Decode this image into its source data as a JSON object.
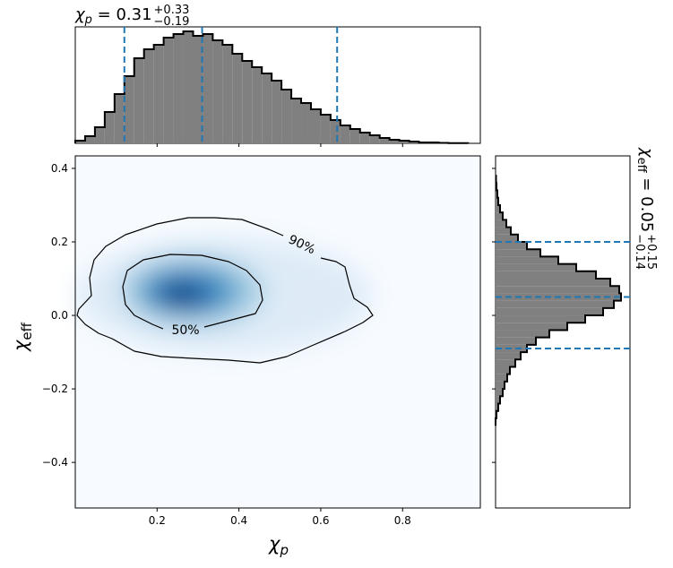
{
  "chart_data": [
    {
      "type": "histogram",
      "orientation": "vertical",
      "title": {
        "symbol": "χ",
        "sub": "p",
        "eq": " = 0.31",
        "plus": "+0.33",
        "minus": "−0.19"
      },
      "bins": [
        0,
        0.024,
        0.048,
        0.072,
        0.096,
        0.12,
        0.144,
        0.168,
        0.192,
        0.216,
        0.24,
        0.264,
        0.288,
        0.312,
        0.336,
        0.36,
        0.384,
        0.408,
        0.432,
        0.456,
        0.48,
        0.504,
        0.528,
        0.552,
        0.576,
        0.6,
        0.624,
        0.648,
        0.672,
        0.696,
        0.72,
        0.744,
        0.768,
        0.792,
        0.816,
        0.84,
        0.864,
        0.888,
        0.912,
        0.936,
        0.96
      ],
      "values": [
        3,
        8,
        18,
        35,
        55,
        75,
        95,
        105,
        110,
        118,
        122,
        125,
        120,
        122,
        115,
        110,
        100,
        92,
        85,
        78,
        70,
        60,
        50,
        45,
        38,
        32,
        26,
        20,
        16,
        12,
        9,
        6,
        4,
        3,
        2,
        1,
        1,
        0.5,
        0.3,
        0.2
      ],
      "color": "#808080",
      "xlim": [
        0,
        0.99
      ],
      "ylim": [
        0,
        130
      ],
      "lines": [
        0.12,
        0.31,
        0.64
      ],
      "line_color": "#1f77b4"
    },
    {
      "type": "density",
      "xlim": [
        0,
        0.99
      ],
      "ylim": [
        -0.524,
        0.434
      ],
      "xticks": [
        0.2,
        0.4,
        0.6,
        0.8
      ],
      "yticks": [
        {
          "value": -0.4,
          "label": "−0.4"
        },
        {
          "value": -0.2,
          "label": "−0.2"
        },
        {
          "value": 0,
          "label": "0.0"
        },
        0.2,
        0.4
      ],
      "x_label": {
        "symbol": "χ",
        "sub": "p"
      },
      "y_label": {
        "symbol": "χ",
        "sub": "eff"
      },
      "contour_labels": [
        "90%",
        "50%"
      ]
    },
    {
      "type": "histogram",
      "orientation": "horizontal",
      "title": {
        "symbol": "χ",
        "sub": "eff",
        "eq": " = 0.05",
        "plus": "+0.15",
        "minus": "−0.14"
      },
      "bins": [
        -0.3,
        -0.28,
        -0.26,
        -0.24,
        -0.22,
        -0.2,
        -0.18,
        -0.16,
        -0.14,
        -0.12,
        -0.1,
        -0.08,
        -0.06,
        -0.04,
        -0.02,
        0,
        0.02,
        0.04,
        0.06,
        0.08,
        0.1,
        0.12,
        0.14,
        0.16,
        0.18,
        0.2,
        0.22,
        0.24,
        0.26,
        0.28,
        0.3,
        0.32,
        0.34,
        0.36,
        0.38
      ],
      "values": [
        0,
        1,
        3,
        5,
        8,
        10,
        13,
        16,
        22,
        28,
        35,
        45,
        60,
        80,
        100,
        120,
        132,
        140,
        138,
        128,
        112,
        90,
        70,
        50,
        35,
        25,
        17,
        12,
        8,
        5,
        3,
        2,
        1,
        0.5
      ],
      "color": "#808080",
      "xlim": [
        0,
        150
      ],
      "ylim": [
        -0.524,
        0.434
      ],
      "lines": [
        -0.09,
        0.05,
        0.2
      ],
      "line_color": "#1f77b4"
    }
  ]
}
